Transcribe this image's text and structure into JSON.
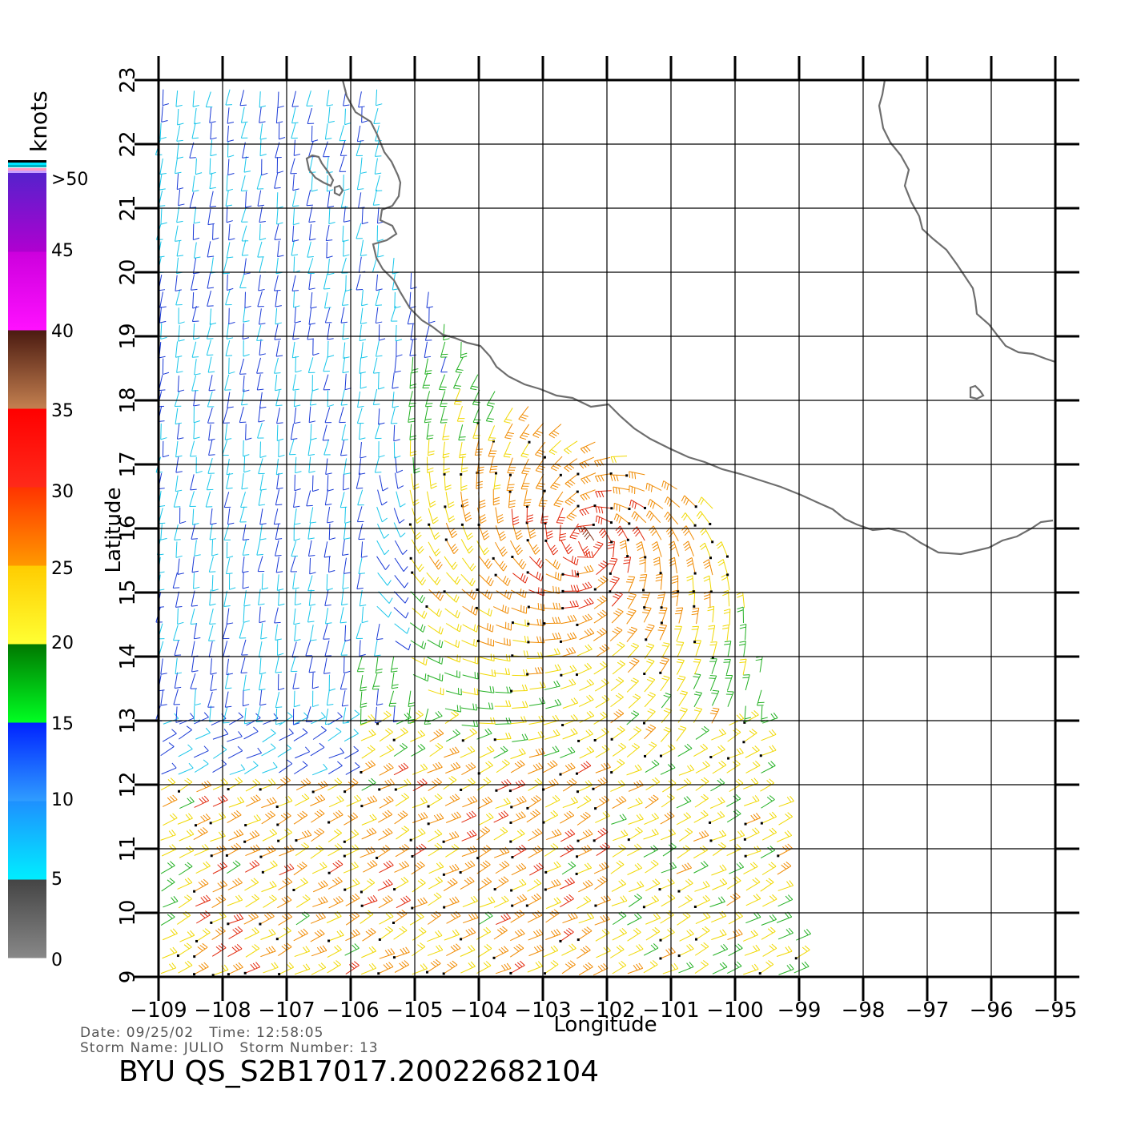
{
  "map": {
    "x_axis_label": "Longitude",
    "y_axis_label": "Latitude",
    "lon_range": [
      -109,
      -95
    ],
    "lat_range": [
      9,
      23
    ],
    "lon_ticks": [
      "−109",
      "−108",
      "−107",
      "−106",
      "−105",
      "−104",
      "−103",
      "−102",
      "−101",
      "−100",
      "−99",
      "−98",
      "−97",
      "−96",
      "−95"
    ],
    "lat_ticks": [
      "9",
      "10",
      "11",
      "12",
      "13",
      "14",
      "15",
      "16",
      "17",
      "18",
      "19",
      "20",
      "21",
      "22",
      "23"
    ],
    "grid": true,
    "content": "QuikSCAT wind barbs over the eastern Pacific off southwestern Mexico, coastline drawn in gray"
  },
  "colorbar": {
    "unit": "knots",
    "labels": [
      ">50",
      "45",
      "40",
      "35",
      "30",
      "25",
      "20",
      "15",
      "10",
      "5",
      "0"
    ],
    "bands": [
      {
        "from": 0,
        "to": 5,
        "top": "#444444",
        "bottom": "#888888"
      },
      {
        "from": 5,
        "to": 10,
        "top": "#1e90ff",
        "bottom": "#00eeff"
      },
      {
        "from": 10,
        "to": 15,
        "top": "#0022ff",
        "bottom": "#2f9dff"
      },
      {
        "from": 15,
        "to": 20,
        "top": "#007700",
        "bottom": "#00ff22"
      },
      {
        "from": 20,
        "to": 25,
        "top": "#ffcc00",
        "bottom": "#ffff33"
      },
      {
        "from": 25,
        "to": 30,
        "top": "#ff3300",
        "bottom": "#ff9900"
      },
      {
        "from": 30,
        "to": 35,
        "top": "#ff0000",
        "bottom": "#ff2a1a"
      },
      {
        "from": 35,
        "to": 40,
        "top": "#4a1a10",
        "bottom": "#c48050"
      },
      {
        "from": 40,
        "to": 45,
        "top": "#cc00dd",
        "bottom": "#ff10ff"
      },
      {
        "from": 45,
        "to": 50,
        "top": "#5522cc",
        "bottom": "#b000d0"
      }
    ]
  },
  "footer": {
    "date_line": "Date: 09/25/02   Time: 12:58:05",
    "storm_line": "Storm Name: JULIO   Storm Number: 13",
    "title": "BYU QS_S2B17017.20022682104"
  }
}
